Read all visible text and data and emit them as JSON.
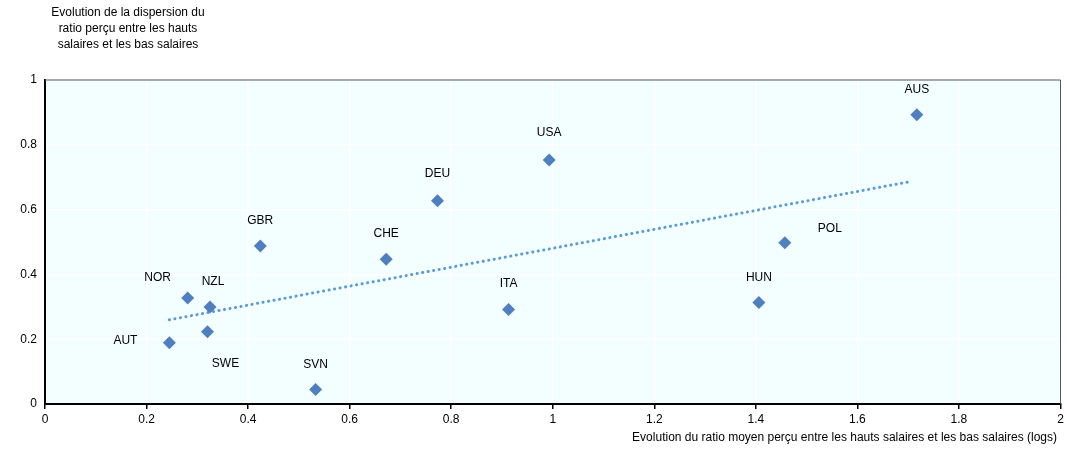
{
  "chart_data": {
    "type": "scatter",
    "xlabel": "Evolution du ratio moyen perçu entre les hauts salaires et les bas salaires (logs)",
    "ylabel": "Evolution de la dispersion du ratio perçu entre les hauts salaires et les bas salaires",
    "xlim": [
      0,
      2
    ],
    "xticks": [
      0,
      0.2,
      0.4,
      0.6,
      0.8,
      1,
      1.2,
      1.4,
      1.6,
      1.8,
      2
    ],
    "ylim": [
      0,
      1
    ],
    "yticks": [
      0,
      0.2,
      0.4,
      0.6,
      0.8,
      1
    ],
    "grid": true,
    "series": [
      {
        "type": "scatter",
        "color": "#4f7fbf",
        "marker": "diamond",
        "x": [
          1.717,
          1.457,
          1.406,
          0.993,
          0.773,
          0.672,
          0.913,
          0.424,
          0.281,
          0.325,
          0.32,
          0.245,
          0.533
        ],
        "values": [
          0.893,
          0.498,
          0.313,
          0.753,
          0.627,
          0.447,
          0.292,
          0.488,
          0.327,
          0.299,
          0.223,
          0.189,
          0.045
        ]
      },
      {
        "type": "line",
        "color": "#5b9bd5",
        "marker": "none",
        "line_style": "dotted",
        "x": [
          0.245,
          1.706
        ],
        "values": [
          0.26,
          0.687
        ]
      }
    ],
    "annotations": [
      {
        "text": "AUS",
        "x": 1.717,
        "y": 0.893
      },
      {
        "text": "POL",
        "x": 1.457,
        "y": 0.498
      },
      {
        "text": "HUN",
        "x": 1.406,
        "y": 0.313
      },
      {
        "text": "USA",
        "x": 0.993,
        "y": 0.753
      },
      {
        "text": "DEU",
        "x": 0.773,
        "y": 0.627
      },
      {
        "text": "CHE",
        "x": 0.672,
        "y": 0.447
      },
      {
        "text": "ITA",
        "x": 0.913,
        "y": 0.292
      },
      {
        "text": "GBR",
        "x": 0.424,
        "y": 0.488
      },
      {
        "text": "NOR",
        "x": 0.281,
        "y": 0.327
      },
      {
        "text": "NZL",
        "x": 0.325,
        "y": 0.299
      },
      {
        "text": "SWE",
        "x": 0.32,
        "y": 0.223
      },
      {
        "text": "AUT",
        "x": 0.245,
        "y": 0.189
      },
      {
        "text": "SVN",
        "x": 0.533,
        "y": 0.045
      }
    ]
  }
}
